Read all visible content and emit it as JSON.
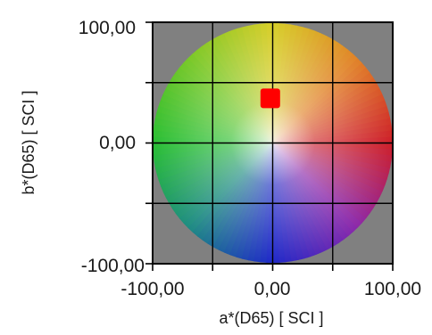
{
  "chart_data": {
    "type": "scatter",
    "xlabel": "a*(D65) [ SCI ]",
    "ylabel": "b*(D65) [ SCI ]",
    "xlim": [
      -100,
      100
    ],
    "ylim": [
      -100,
      100
    ],
    "x_ticks": [
      -100,
      -50,
      0,
      50,
      100
    ],
    "y_ticks": [
      -100,
      -50,
      0,
      50,
      100
    ],
    "x_tick_labels": [
      "-100,00",
      "0,00",
      "100,00"
    ],
    "y_tick_labels": [
      "100,00",
      "0,00",
      "-100,00"
    ],
    "grid": true,
    "background": "a*b* color wheel",
    "plot_background_color": "#808080",
    "grid_color": "#000000",
    "marker_color": "#ff0000",
    "points": [
      {
        "x": -2,
        "y": 37
      }
    ]
  }
}
